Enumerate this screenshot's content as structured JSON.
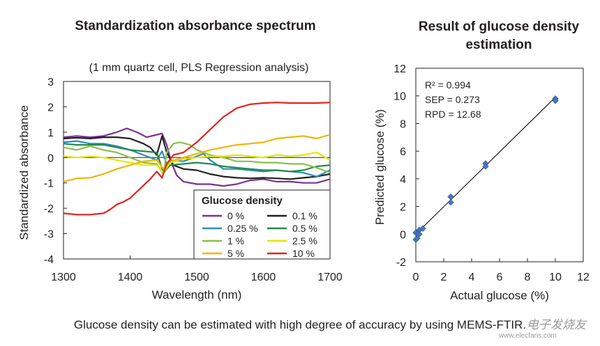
{
  "chart_data": [
    {
      "type": "line",
      "title": "Standardization absorbance spectrum",
      "subtitle": "(1 mm quartz cell, PLS Regression analysis)",
      "xlabel": "Wavelength (nm)",
      "ylabel": "Standardized absorbance",
      "xlim": [
        1300,
        1700
      ],
      "ylim": [
        -4,
        3
      ],
      "xticks": [
        1300,
        1400,
        1500,
        1600,
        1700
      ],
      "yticks": [
        3,
        2,
        1,
        0,
        -1,
        -2,
        -3,
        -4
      ],
      "legend_title": "Glucose density",
      "legend_position": "bottom-right",
      "series": [
        {
          "name": "0 %",
          "color": "#7b3294",
          "x": [
            1300,
            1320,
            1340,
            1360,
            1380,
            1395,
            1410,
            1425,
            1440,
            1448,
            1455,
            1462,
            1470,
            1480,
            1500,
            1520,
            1540,
            1560,
            1580,
            1600,
            1620,
            1640,
            1660,
            1680,
            1700
          ],
          "y": [
            0.8,
            0.85,
            0.8,
            0.85,
            1.0,
            1.15,
            1.0,
            0.8,
            0.9,
            0.95,
            0.5,
            -0.2,
            -0.7,
            -0.95,
            -1.05,
            -1.05,
            -1.12,
            -1.05,
            -0.9,
            -0.85,
            -0.95,
            -0.95,
            -1.0,
            -1.0,
            -0.85
          ]
        },
        {
          "name": "0.1 %",
          "color": "#231f20",
          "x": [
            1300,
            1320,
            1340,
            1360,
            1380,
            1400,
            1420,
            1430,
            1440,
            1448,
            1455,
            1465,
            1480,
            1500,
            1520,
            1540,
            1560,
            1580,
            1600,
            1620,
            1640,
            1660,
            1680,
            1700
          ],
          "y": [
            0.75,
            0.78,
            0.75,
            0.8,
            0.8,
            0.75,
            0.55,
            0.4,
            0.1,
            0.85,
            0.2,
            -0.3,
            -0.45,
            -0.5,
            -0.65,
            -0.75,
            -0.8,
            -0.82,
            -0.8,
            -0.82,
            -0.85,
            -0.8,
            -0.75,
            -0.65
          ]
        },
        {
          "name": "0.25 %",
          "color": "#2b8cbe",
          "x": [
            1300,
            1320,
            1340,
            1360,
            1380,
            1400,
            1420,
            1440,
            1448,
            1455,
            1465,
            1480,
            1500,
            1510,
            1520,
            1540,
            1560,
            1580,
            1600,
            1620,
            1640,
            1660,
            1680,
            1700
          ],
          "y": [
            0.6,
            0.65,
            0.55,
            0.55,
            0.45,
            0.3,
            0.1,
            -0.1,
            0.25,
            -0.25,
            -0.1,
            -0.15,
            0.05,
            0.15,
            -0.1,
            -0.45,
            -0.45,
            -0.5,
            -0.55,
            -0.5,
            -0.55,
            -0.6,
            -0.75,
            -0.5
          ]
        },
        {
          "name": "0.5 %",
          "color": "#238b45",
          "x": [
            1300,
            1320,
            1340,
            1360,
            1380,
            1400,
            1420,
            1440,
            1450,
            1460,
            1480,
            1500,
            1520,
            1540,
            1560,
            1580,
            1600,
            1620,
            1640,
            1660,
            1680,
            1700
          ],
          "y": [
            0.55,
            0.5,
            0.5,
            0.5,
            0.4,
            0.3,
            0.25,
            0.2,
            -0.6,
            -0.3,
            -0.25,
            -0.2,
            -0.25,
            -0.35,
            -0.4,
            -0.45,
            -0.5,
            -0.5,
            -0.55,
            -0.5,
            -0.35,
            -0.3
          ]
        },
        {
          "name": "1 %",
          "color": "#8cbf4a",
          "x": [
            1300,
            1320,
            1340,
            1360,
            1380,
            1400,
            1420,
            1440,
            1450,
            1455,
            1465,
            1475,
            1490,
            1500,
            1520,
            1540,
            1560,
            1580,
            1600,
            1620,
            1640,
            1660,
            1680,
            1700
          ],
          "y": [
            0.4,
            0.3,
            0.45,
            0.3,
            0.2,
            0.0,
            -0.2,
            -0.25,
            -0.65,
            0.2,
            0.55,
            0.6,
            0.5,
            0.3,
            0.1,
            0.0,
            -0.15,
            -0.15,
            -0.2,
            -0.2,
            -0.25,
            -0.25,
            -0.4,
            -0.6
          ]
        },
        {
          "name": "2.5 %",
          "color": "#e6e600",
          "x": [
            1300,
            1320,
            1340,
            1360,
            1380,
            1400,
            1420,
            1440,
            1450,
            1460,
            1480,
            1500,
            1520,
            1540,
            1560,
            1580,
            1600,
            1620,
            1640,
            1660,
            1680,
            1700
          ],
          "y": [
            0.05,
            0.0,
            0.05,
            0.0,
            -0.1,
            -0.2,
            -0.3,
            -0.3,
            -0.6,
            -0.2,
            -0.05,
            0.0,
            0.05,
            0.05,
            0.1,
            0.05,
            0.0,
            0.1,
            0.05,
            0.1,
            0.2,
            -0.1
          ]
        },
        {
          "name": "5 %",
          "color": "#f0b400",
          "x": [
            1300,
            1320,
            1340,
            1360,
            1380,
            1400,
            1420,
            1440,
            1450,
            1460,
            1480,
            1500,
            1520,
            1540,
            1560,
            1580,
            1600,
            1620,
            1640,
            1660,
            1680,
            1700
          ],
          "y": [
            -0.95,
            -0.82,
            -0.8,
            -0.65,
            -0.45,
            -0.3,
            -0.15,
            -0.1,
            -0.45,
            -0.15,
            0.0,
            0.15,
            0.3,
            0.4,
            0.5,
            0.55,
            0.6,
            0.75,
            0.8,
            0.85,
            0.75,
            0.9
          ]
        },
        {
          "name": "10 %",
          "color": "#e2231a",
          "x": [
            1300,
            1320,
            1340,
            1360,
            1370,
            1380,
            1390,
            1400,
            1410,
            1420,
            1430,
            1440,
            1448,
            1455,
            1465,
            1480,
            1500,
            1520,
            1540,
            1560,
            1580,
            1600,
            1620,
            1640,
            1660,
            1680,
            1700
          ],
          "y": [
            -2.2,
            -2.25,
            -2.25,
            -2.2,
            -2.05,
            -1.85,
            -1.75,
            -1.6,
            -1.35,
            -1.1,
            -0.85,
            -0.55,
            -0.8,
            -0.25,
            0.1,
            0.2,
            0.6,
            1.1,
            1.6,
            1.95,
            2.1,
            2.15,
            2.17,
            2.15,
            2.15,
            2.15,
            2.17
          ]
        }
      ]
    },
    {
      "type": "scatter",
      "title": [
        "Result of glucose density",
        "estimation"
      ],
      "xlabel": "Actual glucose (%)",
      "ylabel": "Predicted glucose (%)",
      "xlim": [
        0,
        12
      ],
      "ylim": [
        -2,
        12
      ],
      "xticks": [
        0,
        2,
        4,
        6,
        8,
        10,
        12
      ],
      "yticks": [
        12,
        10,
        8,
        6,
        4,
        2,
        0,
        -2
      ],
      "annotations": [
        "R² = 0.994",
        "SEP = 0.273",
        "RPD = 12.68"
      ],
      "points": {
        "x": [
          0,
          0,
          0.1,
          0.1,
          0.25,
          0.25,
          0.5,
          2.5,
          2.5,
          5,
          5,
          10,
          10
        ],
        "y": [
          -0.4,
          0.1,
          0.0,
          -0.3,
          0.3,
          0.0,
          0.4,
          2.7,
          2.3,
          5.1,
          4.9,
          9.8,
          9.65
        ]
      },
      "regression_line": {
        "x": [
          0,
          10
        ],
        "y": [
          0,
          9.9
        ]
      }
    }
  ],
  "caption": "Glucose density can be estimated with high degree of accuracy by using MEMS-FTIR.",
  "watermark": "电子发烧友",
  "watermark_url": "www.elecfans.com",
  "colors": {
    "axis": "#231f20",
    "marker": "#4a78b8"
  }
}
